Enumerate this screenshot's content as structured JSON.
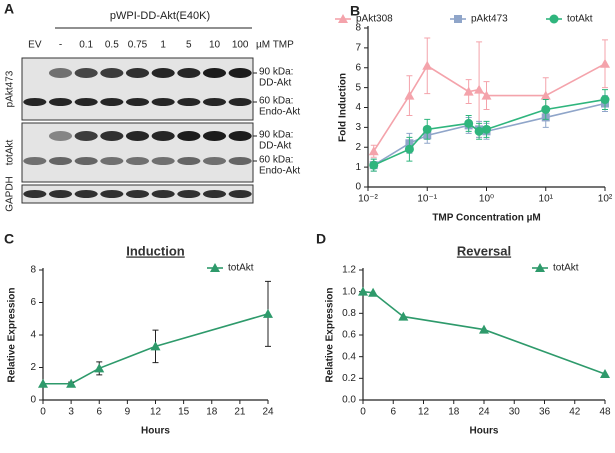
{
  "blot": {
    "label": "A",
    "header": "pWPI-DD-Akt(E40K)",
    "lanes": [
      "EV",
      "-",
      "0.1",
      "0.5",
      "0.75",
      "1",
      "5",
      "10",
      "100"
    ],
    "unit": "µM TMP",
    "rows": [
      {
        "name": "pAkt473",
        "markers": [
          [
            "90 kDa:",
            "DD-Akt"
          ],
          [
            "60 kDa:",
            "Endo-Akt"
          ]
        ]
      },
      {
        "name": "totAkt",
        "markers": [
          [
            "90 kDa:",
            "DD-Akt"
          ],
          [
            "60 kDa:",
            "Endo-Akt"
          ]
        ]
      },
      {
        "name": "GAPDH",
        "markers": []
      }
    ]
  },
  "chart_data": [
    {
      "type": "line",
      "label": "B",
      "xlabel": "TMP Concentration µM",
      "ylabel": "Fold Induction",
      "xscale": "log",
      "xlim": [
        0.01,
        100
      ],
      "ylim": [
        0,
        8
      ],
      "xticks": [
        {
          "value": 0.01,
          "label": "10⁻²"
        },
        {
          "value": 0.1,
          "label": "10⁻¹"
        },
        {
          "value": 1,
          "label": "10⁰"
        },
        {
          "value": 10,
          "label": "10¹"
        },
        {
          "value": 100,
          "label": "10²"
        }
      ],
      "yticks": [
        0,
        1,
        2,
        3,
        4,
        5,
        6,
        7,
        8
      ],
      "legend": "top",
      "x": [
        0.0125,
        0.05,
        0.1,
        0.5,
        0.75,
        1,
        10,
        100
      ],
      "series": [
        {
          "name": "pAkt308",
          "color": "#f4a3ab",
          "marker": "triangle",
          "values": [
            1.8,
            4.6,
            6.1,
            4.8,
            4.9,
            4.6,
            4.6,
            6.2
          ],
          "errors": [
            0.3,
            1.0,
            1.4,
            0.6,
            2.4,
            0.7,
            0.9,
            1.2
          ]
        },
        {
          "name": "pAkt473",
          "color": "#8fa5c9",
          "marker": "square",
          "values": [
            1.1,
            2.2,
            2.6,
            3.1,
            2.9,
            2.8,
            3.5,
            4.2
          ],
          "errors": [
            0.3,
            0.5,
            0.4,
            0.4,
            0.4,
            0.4,
            0.5,
            0.4
          ]
        },
        {
          "name": "totAkt",
          "color": "#2fb57d",
          "marker": "circle",
          "values": [
            1.1,
            1.9,
            2.9,
            3.2,
            2.8,
            2.9,
            3.9,
            4.4
          ],
          "errors": [
            0.3,
            0.6,
            0.5,
            0.4,
            0.4,
            0.4,
            0.5,
            0.5
          ]
        }
      ]
    },
    {
      "type": "line",
      "label": "C",
      "title": "Induction",
      "xlabel": "Hours",
      "ylabel": "Relative Expression",
      "xlim": [
        0,
        24
      ],
      "ylim": [
        0,
        8
      ],
      "xticks": [
        0,
        3,
        6,
        9,
        12,
        15,
        18,
        21,
        24
      ],
      "yticks": [
        0,
        2,
        4,
        6,
        8
      ],
      "legend": "upper right",
      "x": [
        0,
        3,
        6,
        12,
        24
      ],
      "series": [
        {
          "name": "totAkt",
          "color": "#2e9a6b",
          "marker": "triangle",
          "values": [
            1,
            1,
            1.95,
            3.3,
            5.3
          ],
          "errors": [
            null,
            0.1,
            0.4,
            1.0,
            2.0
          ]
        }
      ]
    },
    {
      "type": "line",
      "label": "D",
      "title": "Reversal",
      "xlabel": "Hours",
      "ylabel": "Relative Expression",
      "xlim": [
        0,
        48
      ],
      "ylim": [
        0,
        1.2
      ],
      "xticks": [
        0,
        6,
        12,
        18,
        24,
        30,
        36,
        42,
        48
      ],
      "yticks": [
        {
          "value": 0,
          "label": "0.0"
        },
        0.2,
        0.4,
        0.6,
        0.8,
        {
          "value": 1,
          "label": "1.0"
        },
        1.2
      ],
      "legend": "upper right",
      "x": [
        0,
        2,
        8,
        24,
        48
      ],
      "series": [
        {
          "name": "totAkt",
          "color": "#2e9a6b",
          "marker": "triangle",
          "values": [
            1,
            0.99,
            0.77,
            0.65,
            0.24
          ]
        }
      ]
    }
  ]
}
